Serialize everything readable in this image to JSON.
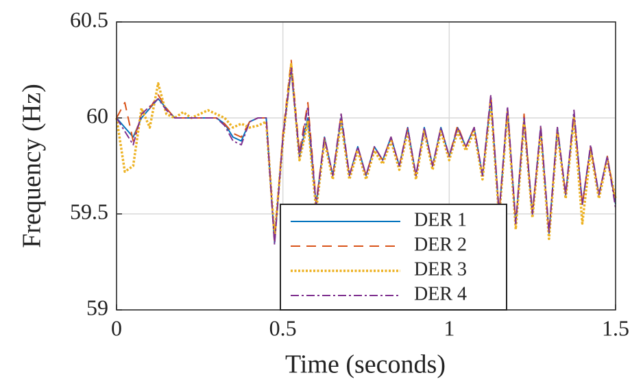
{
  "chart_data": {
    "type": "line",
    "xlabel": "Time (seconds)",
    "ylabel": "Frequency (Hz)",
    "x": [
      0,
      0.025,
      0.05,
      0.075,
      0.1,
      0.125,
      0.15,
      0.175,
      0.2,
      0.225,
      0.25,
      0.275,
      0.3,
      0.325,
      0.35,
      0.375,
      0.4,
      0.425,
      0.45,
      0.475,
      0.5,
      0.525,
      0.55,
      0.575,
      0.6,
      0.625,
      0.65,
      0.675,
      0.7,
      0.725,
      0.75,
      0.775,
      0.8,
      0.825,
      0.85,
      0.875,
      0.9,
      0.925,
      0.95,
      0.975,
      1.0,
      1.025,
      1.05,
      1.075,
      1.1,
      1.125,
      1.15,
      1.175,
      1.2,
      1.225,
      1.25,
      1.275,
      1.3,
      1.325,
      1.35,
      1.375,
      1.4,
      1.425,
      1.45,
      1.475,
      1.5
    ],
    "series": [
      {
        "name": "DER 1",
        "color": "#0072bd",
        "dash": "solid",
        "values": [
          60.0,
          59.95,
          59.9,
          60.0,
          60.05,
          60.1,
          60.05,
          60.0,
          60.0,
          60.0,
          60.0,
          60.0,
          60.0,
          59.97,
          59.9,
          59.88,
          59.98,
          60.0,
          60.0,
          59.35,
          59.9,
          60.25,
          59.8,
          60.0,
          59.55,
          59.9,
          59.7,
          60.0,
          59.7,
          59.85,
          59.7,
          59.85,
          59.78,
          59.9,
          59.75,
          59.95,
          59.7,
          59.95,
          59.75,
          59.95,
          59.8,
          59.95,
          59.85,
          59.95,
          59.7,
          60.1,
          59.5,
          60.05,
          59.45,
          60.0,
          59.5,
          59.95,
          59.4,
          59.95,
          59.6,
          60.02,
          59.55,
          59.85,
          59.6,
          59.8,
          59.55
        ]
      },
      {
        "name": "DER 2",
        "color": "#d95319",
        "dash": "dashed",
        "values": [
          60.0,
          60.08,
          59.88,
          60.02,
          60.05,
          60.12,
          60.05,
          60.0,
          60.0,
          60.0,
          60.0,
          60.0,
          60.0,
          59.97,
          59.92,
          59.9,
          59.98,
          60.0,
          60.0,
          59.36,
          59.92,
          60.3,
          59.82,
          60.08,
          59.56,
          59.9,
          59.7,
          60.02,
          59.7,
          59.85,
          59.7,
          59.85,
          59.78,
          59.9,
          59.75,
          59.95,
          59.7,
          59.95,
          59.75,
          59.95,
          59.8,
          59.96,
          59.85,
          59.95,
          59.7,
          60.12,
          59.5,
          60.05,
          59.45,
          60.02,
          59.5,
          59.95,
          59.4,
          59.95,
          59.6,
          60.02,
          59.55,
          59.85,
          59.6,
          59.8,
          59.56
        ]
      },
      {
        "name": "DER 3",
        "color": "#edb120",
        "dash": "dotted",
        "values": [
          60.0,
          59.72,
          59.75,
          60.05,
          59.95,
          60.18,
          60.02,
          60.0,
          60.03,
          60.0,
          60.02,
          60.04,
          60.02,
          60.0,
          59.95,
          59.97,
          59.95,
          59.96,
          59.98,
          59.38,
          59.88,
          60.28,
          59.78,
          59.98,
          59.52,
          59.88,
          59.68,
          59.98,
          59.68,
          59.83,
          59.68,
          59.83,
          59.76,
          59.88,
          59.73,
          59.93,
          59.68,
          59.93,
          59.73,
          59.93,
          59.78,
          59.93,
          59.83,
          59.93,
          59.68,
          60.08,
          59.48,
          60.03,
          59.42,
          59.98,
          59.48,
          59.93,
          59.37,
          59.93,
          59.58,
          60.0,
          59.45,
          59.83,
          59.58,
          59.78,
          59.58
        ]
      },
      {
        "name": "DER 4",
        "color": "#7e2f8e",
        "dash": "dashdot",
        "values": [
          60.0,
          59.93,
          59.86,
          60.02,
          60.06,
          60.1,
          60.04,
          60.0,
          60.0,
          60.0,
          60.0,
          60.0,
          60.0,
          59.96,
          59.88,
          59.86,
          59.98,
          60.0,
          60.0,
          59.34,
          59.9,
          60.26,
          59.8,
          60.06,
          59.54,
          59.9,
          59.7,
          60.02,
          59.7,
          59.85,
          59.7,
          59.85,
          59.78,
          59.9,
          59.75,
          59.95,
          59.7,
          59.95,
          59.75,
          59.95,
          59.8,
          59.95,
          59.85,
          59.95,
          59.7,
          60.12,
          59.5,
          60.06,
          59.45,
          60.0,
          59.5,
          59.96,
          59.4,
          59.95,
          59.6,
          60.04,
          59.55,
          59.86,
          59.6,
          59.8,
          59.53
        ]
      }
    ],
    "xlim": [
      0,
      1.5
    ],
    "ylim": [
      59,
      60.5
    ],
    "xticks": [
      0,
      0.5,
      1,
      1.5
    ],
    "yticks": [
      59,
      59.5,
      60,
      60.5
    ],
    "grid": true,
    "legend": "lower center"
  }
}
